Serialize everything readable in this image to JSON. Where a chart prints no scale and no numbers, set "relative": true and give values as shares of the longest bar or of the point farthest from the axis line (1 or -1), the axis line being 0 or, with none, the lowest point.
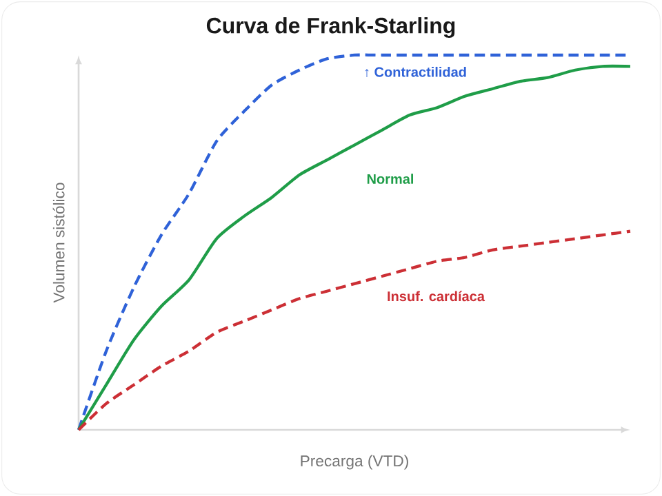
{
  "chart_data": {
    "type": "line",
    "title": "Curva de Frank-Starling",
    "xlabel": "Precarga (VTD)",
    "ylabel": "Volumen sistólico",
    "relative": true,
    "categories": [
      null,
      null,
      null,
      null,
      null,
      null,
      null,
      null,
      null,
      null,
      null,
      null,
      null,
      null,
      null,
      null,
      null,
      null,
      null,
      null,
      null
    ],
    "series": [
      {
        "name": "↑ Contractilidad",
        "color": "#2f62d8",
        "line_style": "dashed",
        "values": [
          0,
          0.21,
          0.38,
          0.52,
          0.63,
          0.77,
          0.85,
          0.92,
          0.96,
          0.99,
          1,
          1,
          1,
          1,
          1,
          1,
          1,
          1,
          1,
          1,
          1
        ]
      },
      {
        "name": "Normal",
        "color": "#1f9d48",
        "line_style": "solid",
        "values": [
          0,
          0.12,
          0.24,
          0.33,
          0.4,
          0.51,
          0.57,
          0.62,
          0.68,
          0.72,
          0.76,
          0.8,
          0.84,
          0.86,
          0.89,
          0.91,
          0.93,
          0.94,
          0.96,
          0.97,
          0.97
        ]
      },
      {
        "name": "Insuf. cardíaca",
        "color": "#cc2f35",
        "line_style": "dashed",
        "values": [
          0,
          0.07,
          0.12,
          0.17,
          0.21,
          0.26,
          0.29,
          0.32,
          0.35,
          0.37,
          0.39,
          0.41,
          0.43,
          0.45,
          0.46,
          0.48,
          0.49,
          0.5,
          0.51,
          0.52,
          0.53
        ]
      }
    ]
  }
}
